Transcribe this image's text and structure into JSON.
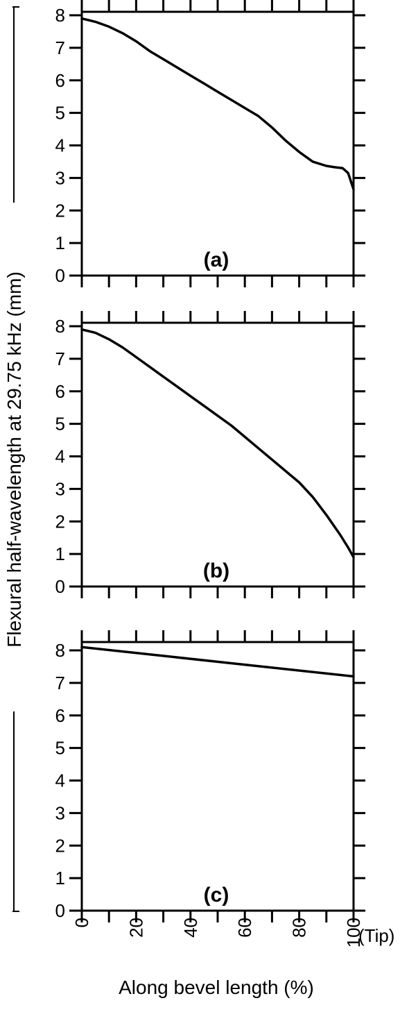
{
  "ylabel": "Flexural half-wavelength at 29.75 kHz (mm)",
  "xlabel": "Along bevel length (%)",
  "x_tick_labels": [
    "0",
    "20",
    "40",
    "60",
    "80",
    "100"
  ],
  "x_tip_label": "(Tip)",
  "colors": {
    "line": "#000000",
    "axis": "#000000",
    "background": "#ffffff"
  },
  "chart_data": [
    {
      "type": "line",
      "panel_label": "(a)",
      "xlim": [
        0,
        100
      ],
      "ylim": [
        0,
        8
      ],
      "y_ticks": [
        "0",
        "1",
        "2",
        "3",
        "4",
        "5",
        "6",
        "7",
        "8"
      ],
      "grid": false,
      "x": [
        0,
        5,
        10,
        15,
        20,
        25,
        30,
        35,
        40,
        45,
        50,
        55,
        60,
        65,
        70,
        75,
        80,
        85,
        90,
        93,
        96,
        98,
        100
      ],
      "y": [
        7.9,
        7.8,
        7.65,
        7.45,
        7.2,
        6.9,
        6.65,
        6.4,
        6.15,
        5.9,
        5.65,
        5.4,
        5.15,
        4.9,
        4.55,
        4.15,
        3.8,
        3.5,
        3.37,
        3.33,
        3.3,
        3.15,
        2.65
      ]
    },
    {
      "type": "line",
      "panel_label": "(b)",
      "xlim": [
        0,
        100
      ],
      "ylim": [
        0,
        8
      ],
      "y_ticks": [
        "0",
        "1",
        "2",
        "3",
        "4",
        "5",
        "6",
        "7",
        "8"
      ],
      "grid": false,
      "x": [
        0,
        5,
        10,
        15,
        20,
        25,
        30,
        35,
        40,
        45,
        50,
        55,
        60,
        65,
        70,
        75,
        80,
        85,
        90,
        95,
        98,
        100
      ],
      "y": [
        7.9,
        7.8,
        7.6,
        7.35,
        7.05,
        6.75,
        6.45,
        6.15,
        5.85,
        5.55,
        5.25,
        4.95,
        4.6,
        4.25,
        3.9,
        3.55,
        3.2,
        2.75,
        2.2,
        1.6,
        1.2,
        0.9
      ]
    },
    {
      "type": "line",
      "panel_label": "(c)",
      "xlim": [
        0,
        100
      ],
      "ylim": [
        0,
        8
      ],
      "y_ticks": [
        "0",
        "1",
        "2",
        "3",
        "4",
        "5",
        "6",
        "7",
        "8"
      ],
      "grid": false,
      "x": [
        0,
        100
      ],
      "y": [
        8.1,
        7.2
      ]
    }
  ]
}
